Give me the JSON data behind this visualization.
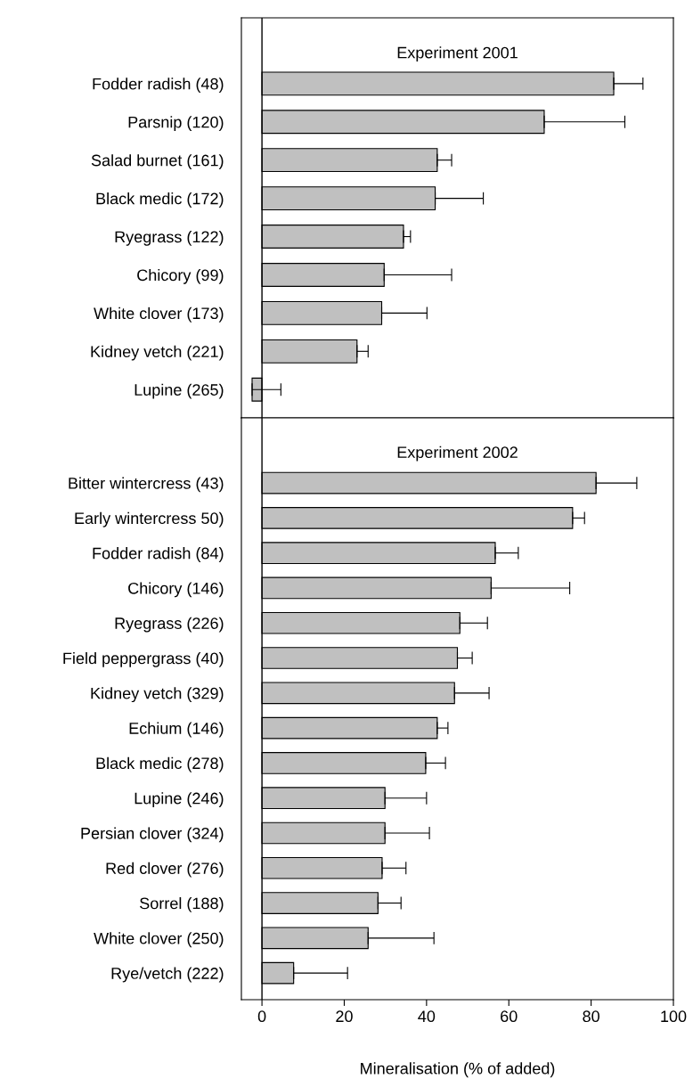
{
  "chart_data": [
    {
      "type": "bar",
      "orientation": "horizontal",
      "title": "Experiment 2001",
      "color": "#c0c0c0",
      "xlim": [
        -5,
        100
      ],
      "tick_labels": "y",
      "categories": [
        "Fodder radish (48)",
        "Parsnip (120)",
        "Salad burnet (161)",
        "Black medic (172)",
        "Ryegrass (122)",
        "Chicory (99)",
        "White clover (173)",
        "Kidney vetch (221)",
        "Lupine (265)"
      ],
      "values": [
        85.5,
        68.6,
        42.6,
        42.1,
        34.4,
        29.7,
        29.1,
        23.1,
        -2.4
      ],
      "errors": [
        [
          85.5,
          92.6
        ],
        [
          68.6,
          88.2
        ],
        [
          42.6,
          46.1
        ],
        [
          42.1,
          53.8
        ],
        [
          34.4,
          36.1
        ],
        [
          29.7,
          46.1
        ],
        [
          29.1,
          40.1
        ],
        [
          23.1,
          25.8
        ],
        [
          -2.4,
          4.6
        ]
      ]
    },
    {
      "type": "bar",
      "orientation": "horizontal",
      "title": "Experiment 2002",
      "color": "#c0c0c0",
      "xlim": [
        -5,
        100
      ],
      "xticks": [
        0,
        20,
        40,
        60,
        80,
        100
      ],
      "xlabel": "Mineralisation (% of added)",
      "categories": [
        "Bitter wintercress (43)",
        "Early wintercress 50)",
        "Fodder radish (84)",
        "Chicory (146)",
        "Ryegrass (226)",
        "Field peppergrass (40)",
        "Kidney vetch (329)",
        "Echium (146)",
        "Black medic (278)",
        "Lupine (246)",
        "Persian clover (324)",
        "Red clover (276)",
        "Sorrel (188)",
        "White clover (250)",
        "Rye/vetch (222)"
      ],
      "values": [
        81.2,
        75.5,
        56.7,
        55.7,
        48.1,
        47.5,
        46.8,
        42.6,
        39.8,
        29.9,
        29.9,
        29.2,
        28.2,
        25.8,
        7.7
      ],
      "errors": [
        [
          81.2,
          91.1
        ],
        [
          75.5,
          78.4
        ],
        [
          56.7,
          62.3
        ],
        [
          55.7,
          74.8
        ],
        [
          48.1,
          54.8
        ],
        [
          47.5,
          51.1
        ],
        [
          46.8,
          55.2
        ],
        [
          42.6,
          45.2
        ],
        [
          39.8,
          44.6
        ],
        [
          29.9,
          40.0
        ],
        [
          29.9,
          40.7
        ],
        [
          29.2,
          35.0
        ],
        [
          28.2,
          33.8
        ],
        [
          25.8,
          41.8
        ],
        [
          7.7,
          20.8
        ]
      ]
    }
  ]
}
